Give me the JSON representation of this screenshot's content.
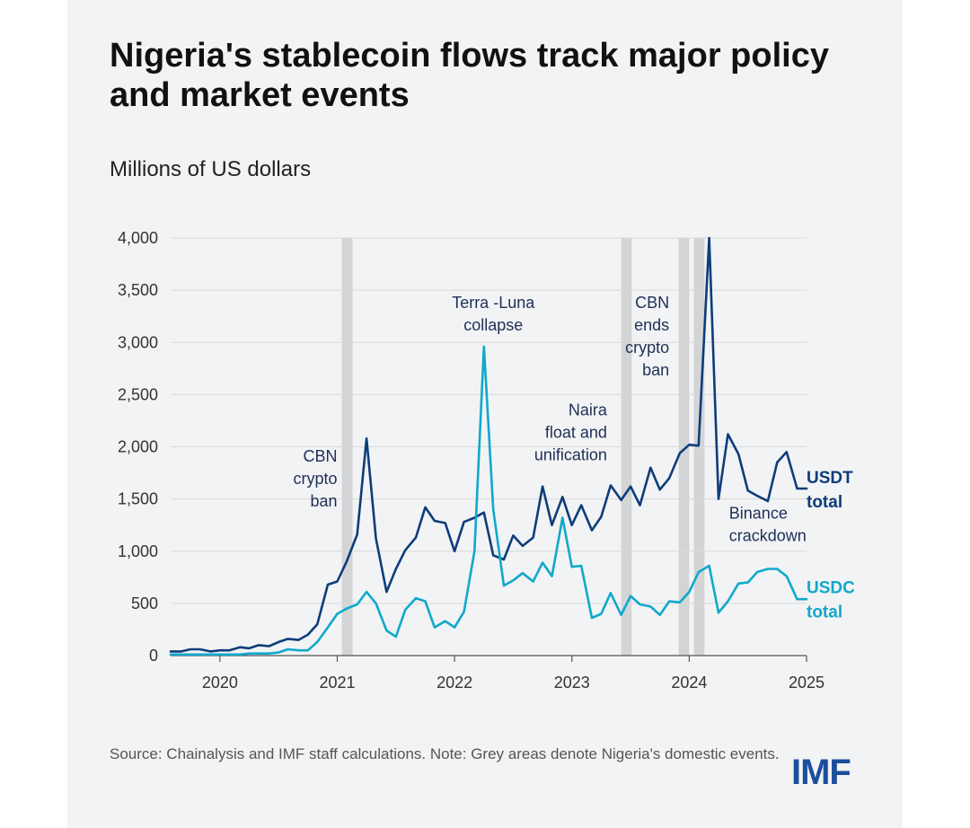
{
  "title": "Nigeria's stablecoin flows track major policy and market events",
  "unit": "Millions of US dollars",
  "source_note": "Source: Chainalysis and IMF staff calculations. Note: Grey areas denote Nigeria's domestic events.",
  "logo": "IMF",
  "colors": {
    "usdt": "#0d3d7a",
    "usdc": "#10a8cc",
    "event_band": "#d3d4d6",
    "grid": "#d8d9db",
    "axis": "#555555"
  },
  "chart_data": {
    "type": "line",
    "ylim": [
      0,
      4000
    ],
    "yticks": [
      0,
      500,
      1000,
      1500,
      2000,
      2500,
      3000,
      3500,
      4000
    ],
    "ytick_labels": [
      "0",
      "500",
      "1,000",
      "1,500",
      "2,000",
      "2,500",
      "3,000",
      "3,500",
      "4,000"
    ],
    "xlim": [
      2019.58,
      2025.0
    ],
    "xticks": [
      2020,
      2021,
      2022,
      2023,
      2024,
      2025
    ],
    "xtick_labels": [
      "2020",
      "2021",
      "2022",
      "2023",
      "2024",
      "2025"
    ],
    "grid": true,
    "event_bands": [
      [
        2021.04,
        2021.13
      ],
      [
        2023.42,
        2023.51
      ],
      [
        2023.91,
        2024.0
      ],
      [
        2024.04,
        2024.13
      ]
    ],
    "annotations": [
      {
        "lines": [
          "CBN",
          "crypto",
          "ban"
        ],
        "x": 2021.0,
        "y": 1860,
        "anchor": "end"
      },
      {
        "lines": [
          "Terra -Luna",
          "collapse"
        ],
        "x": 2022.33,
        "y": 3330,
        "anchor": "middle"
      },
      {
        "lines": [
          "Naira",
          "float and",
          "unification"
        ],
        "x": 2023.3,
        "y": 2300,
        "anchor": "end"
      },
      {
        "lines": [
          "CBN",
          "ends",
          "crypto",
          "ban"
        ],
        "x": 2023.83,
        "y": 3330,
        "anchor": "end"
      },
      {
        "lines": [
          "Binance",
          "crackdown"
        ],
        "x": 2024.34,
        "y": 1310,
        "anchor": "start"
      }
    ],
    "series": [
      {
        "name": "USDT total",
        "label_lines": [
          "USDT",
          "total"
        ],
        "label_y": 1650,
        "color": "#0d3d7a",
        "x": [
          2019.58,
          2019.67,
          2019.75,
          2019.83,
          2019.92,
          2020.0,
          2020.08,
          2020.17,
          2020.25,
          2020.33,
          2020.42,
          2020.5,
          2020.58,
          2020.67,
          2020.75,
          2020.83,
          2020.92,
          2021.0,
          2021.08,
          2021.17,
          2021.25,
          2021.33,
          2021.42,
          2021.5,
          2021.58,
          2021.67,
          2021.75,
          2021.83,
          2021.92,
          2022.0,
          2022.08,
          2022.17,
          2022.25,
          2022.33,
          2022.42,
          2022.5,
          2022.58,
          2022.67,
          2022.75,
          2022.83,
          2022.92,
          2023.0,
          2023.08,
          2023.17,
          2023.25,
          2023.33,
          2023.42,
          2023.5,
          2023.58,
          2023.67,
          2023.75,
          2023.83,
          2023.92,
          2024.0,
          2024.08,
          2024.17,
          2024.25,
          2024.33,
          2024.42,
          2024.5,
          2024.58,
          2024.67,
          2024.75,
          2024.83,
          2024.92,
          2025.0
        ],
        "y": [
          40,
          40,
          60,
          60,
          40,
          50,
          50,
          80,
          70,
          100,
          90,
          130,
          160,
          150,
          200,
          300,
          680,
          710,
          900,
          1160,
          2080,
          1120,
          610,
          830,
          1010,
          1130,
          1420,
          1290,
          1270,
          1000,
          1280,
          1320,
          1370,
          960,
          920,
          1150,
          1050,
          1130,
          1620,
          1250,
          1520,
          1250,
          1440,
          1200,
          1330,
          1630,
          1490,
          1620,
          1440,
          1800,
          1590,
          1700,
          1940,
          2020,
          2010,
          4000,
          1500,
          2120,
          1930,
          1580,
          1530,
          1480,
          1850,
          1950,
          1600,
          1600
        ]
      },
      {
        "name": "USDC total",
        "label_lines": [
          "USDC",
          "total"
        ],
        "label_y": 600,
        "color": "#10a8cc",
        "x": [
          2019.58,
          2019.67,
          2019.75,
          2019.83,
          2019.92,
          2020.0,
          2020.08,
          2020.17,
          2020.25,
          2020.33,
          2020.42,
          2020.5,
          2020.58,
          2020.67,
          2020.75,
          2020.83,
          2020.92,
          2021.0,
          2021.08,
          2021.17,
          2021.25,
          2021.33,
          2021.42,
          2021.5,
          2021.58,
          2021.67,
          2021.75,
          2021.83,
          2021.92,
          2022.0,
          2022.08,
          2022.17,
          2022.25,
          2022.33,
          2022.42,
          2022.5,
          2022.58,
          2022.67,
          2022.75,
          2022.83,
          2022.92,
          2023.0,
          2023.08,
          2023.17,
          2023.25,
          2023.33,
          2023.42,
          2023.5,
          2023.58,
          2023.67,
          2023.75,
          2023.83,
          2023.92,
          2024.0,
          2024.08,
          2024.17,
          2024.25,
          2024.33,
          2024.42,
          2024.5,
          2024.58,
          2024.67,
          2024.75,
          2024.83,
          2024.92,
          2025.0
        ],
        "y": [
          10,
          10,
          10,
          10,
          10,
          10,
          10,
          10,
          20,
          20,
          20,
          30,
          60,
          50,
          50,
          130,
          270,
          400,
          450,
          490,
          610,
          500,
          240,
          180,
          440,
          550,
          520,
          270,
          330,
          270,
          420,
          1000,
          2960,
          1400,
          670,
          720,
          790,
          710,
          890,
          760,
          1320,
          850,
          860,
          360,
          400,
          600,
          390,
          570,
          490,
          470,
          390,
          520,
          510,
          610,
          800,
          860,
          410,
          520,
          690,
          700,
          800,
          830,
          830,
          760,
          540,
          540
        ]
      }
    ]
  }
}
